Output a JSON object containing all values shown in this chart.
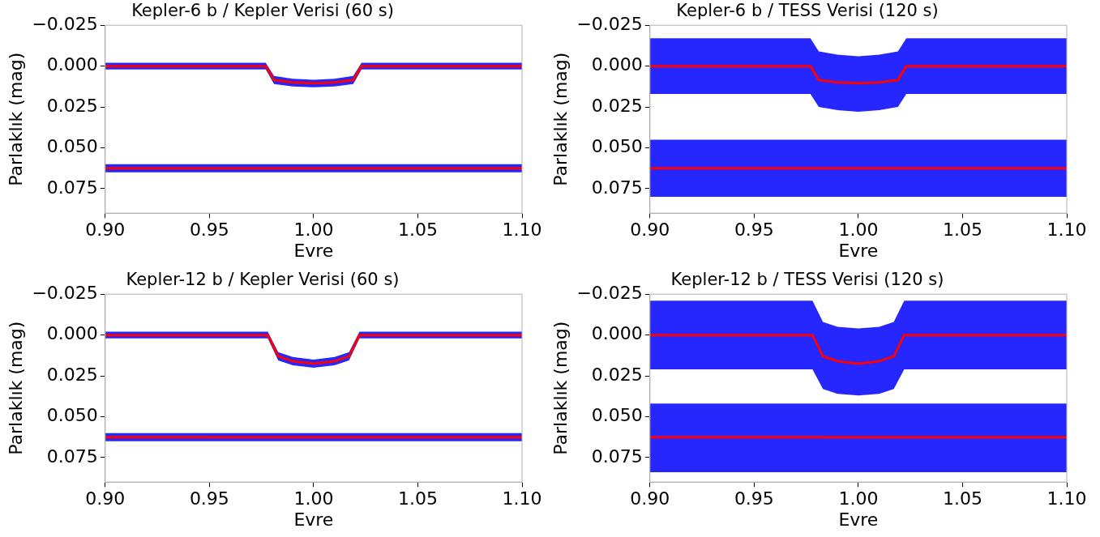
{
  "chart_data": [
    {
      "type": "line",
      "title": "Kepler-6 b / Kepler Verisi (60 s)",
      "xlabel": "Evre",
      "ylabel": "Parlaklık (mag)",
      "xlim": [
        0.9,
        1.1
      ],
      "ylim": [
        0.09,
        -0.025
      ],
      "grid": false,
      "legend": false,
      "xticks": [
        {
          "value": 0.9,
          "label": "0.90"
        },
        {
          "value": 0.95,
          "label": "0.95"
        },
        {
          "value": 1.0,
          "label": "1.00"
        },
        {
          "value": 1.05,
          "label": "1.05"
        },
        {
          "value": 1.1,
          "label": "1.10"
        }
      ],
      "yticks": [
        {
          "value": -0.025,
          "label": "−0.025"
        },
        {
          "value": 0,
          "label": "0.000"
        },
        {
          "value": 0.025,
          "label": "0.025"
        },
        {
          "value": 0.05,
          "label": "0.050"
        },
        {
          "value": 0.075,
          "label": "0.075"
        }
      ],
      "series": [
        {
          "color": "#0000ff",
          "x": [
            0.9,
            0.977,
            0.981,
            0.99,
            1.0,
            1.01,
            1.019,
            1.023,
            1.1
          ],
          "values": [
            null,
            null,
            null,
            null,
            null,
            null,
            null,
            null,
            null
          ],
          "lower": [
            -0.002,
            -0.002,
            0.006,
            0.0078,
            0.0083,
            0.0078,
            0.006,
            -0.002,
            -0.002
          ],
          "upper": [
            0.002,
            0.002,
            0.011,
            0.0125,
            0.013,
            0.0125,
            0.011,
            0.002,
            0.002
          ]
        },
        {
          "color": "#ff0000",
          "x": [
            0.9,
            0.977,
            0.981,
            0.99,
            1.0,
            1.01,
            1.019,
            1.023,
            1.1
          ],
          "values": [
            0,
            0,
            0.0085,
            0.01,
            0.0105,
            0.01,
            0.0085,
            0,
            0
          ]
        },
        {
          "color": "#0000ff",
          "x": [
            0.9,
            1.1
          ],
          "values": [
            null,
            null
          ],
          "lower": [
            0.06,
            0.06
          ],
          "upper": [
            0.065,
            0.065
          ]
        },
        {
          "color": "#ff0000",
          "x": [
            0.9,
            1.1
          ],
          "values": [
            0.0625,
            0.0625
          ]
        }
      ]
    },
    {
      "type": "line",
      "title": "Kepler-6 b / TESS Verisi (120 s)",
      "xlabel": "Evre",
      "ylabel": "Parlaklık (mag)",
      "xlim": [
        0.9,
        1.1
      ],
      "ylim": [
        0.09,
        -0.025
      ],
      "grid": false,
      "legend": false,
      "xticks": [
        {
          "value": 0.9,
          "label": "0.90"
        },
        {
          "value": 0.95,
          "label": "0.95"
        },
        {
          "value": 1.0,
          "label": "1.00"
        },
        {
          "value": 1.05,
          "label": "1.05"
        },
        {
          "value": 1.1,
          "label": "1.10"
        }
      ],
      "yticks": [
        {
          "value": -0.025,
          "label": "−0.025"
        },
        {
          "value": 0,
          "label": "0.000"
        },
        {
          "value": 0.025,
          "label": "0.025"
        },
        {
          "value": 0.05,
          "label": "0.050"
        },
        {
          "value": 0.075,
          "label": "0.075"
        }
      ],
      "series": [
        {
          "color": "#0000ff",
          "x": [
            0.9,
            0.977,
            0.981,
            0.99,
            1.0,
            1.01,
            1.019,
            1.023,
            1.1
          ],
          "values": [
            null,
            null,
            null,
            null,
            null,
            null,
            null,
            null,
            null
          ],
          "lower": [
            -0.017,
            -0.017,
            -0.009,
            -0.007,
            -0.006,
            -0.007,
            -0.009,
            -0.017,
            -0.017
          ],
          "upper": [
            0.017,
            0.017,
            0.025,
            0.027,
            0.028,
            0.027,
            0.025,
            0.017,
            0.017
          ]
        },
        {
          "color": "#ff0000",
          "x": [
            0.9,
            0.977,
            0.981,
            0.99,
            1.0,
            1.01,
            1.019,
            1.023,
            1.1
          ],
          "values": [
            0,
            0,
            0.0085,
            0.01,
            0.0105,
            0.01,
            0.0085,
            0,
            0
          ]
        },
        {
          "color": "#0000ff",
          "x": [
            0.9,
            1.1
          ],
          "values": [
            null,
            null
          ],
          "lower": [
            0.045,
            0.045
          ],
          "upper": [
            0.08,
            0.08
          ]
        },
        {
          "color": "#ff0000",
          "x": [
            0.9,
            1.1
          ],
          "values": [
            0.0625,
            0.0625
          ]
        }
      ]
    },
    {
      "type": "line",
      "title": "Kepler-12 b / Kepler Verisi (60 s)",
      "xlabel": "Evre",
      "ylabel": "Parlaklık (mag)",
      "xlim": [
        0.9,
        1.1
      ],
      "ylim": [
        0.09,
        -0.025
      ],
      "grid": false,
      "legend": false,
      "xticks": [
        {
          "value": 0.9,
          "label": "0.90"
        },
        {
          "value": 0.95,
          "label": "0.95"
        },
        {
          "value": 1.0,
          "label": "1.00"
        },
        {
          "value": 1.05,
          "label": "1.05"
        },
        {
          "value": 1.1,
          "label": "1.10"
        }
      ],
      "yticks": [
        {
          "value": -0.025,
          "label": "−0.025"
        },
        {
          "value": 0,
          "label": "0.000"
        },
        {
          "value": 0.025,
          "label": "0.025"
        },
        {
          "value": 0.05,
          "label": "0.050"
        },
        {
          "value": 0.075,
          "label": "0.075"
        }
      ],
      "series": [
        {
          "color": "#0000ff",
          "x": [
            0.9,
            0.978,
            0.983,
            0.99,
            1.0,
            1.01,
            1.017,
            1.022,
            1.1
          ],
          "values": [
            null,
            null,
            null,
            null,
            null,
            null,
            null,
            null,
            null
          ],
          "lower": [
            -0.002,
            -0.002,
            0.0105,
            0.0135,
            0.015,
            0.0135,
            0.0105,
            -0.002,
            -0.002
          ],
          "upper": [
            0.002,
            0.002,
            0.0155,
            0.0185,
            0.02,
            0.0185,
            0.0155,
            0.002,
            0.002
          ]
        },
        {
          "color": "#ff0000",
          "x": [
            0.9,
            0.978,
            0.983,
            0.99,
            1.0,
            1.01,
            1.017,
            1.022,
            1.1
          ],
          "values": [
            0,
            0,
            0.013,
            0.016,
            0.0175,
            0.016,
            0.013,
            0,
            0
          ]
        },
        {
          "color": "#0000ff",
          "x": [
            0.9,
            1.1
          ],
          "values": [
            null,
            null
          ],
          "lower": [
            0.06,
            0.06
          ],
          "upper": [
            0.065,
            0.065
          ]
        },
        {
          "color": "#ff0000",
          "x": [
            0.9,
            1.1
          ],
          "values": [
            0.0625,
            0.0625
          ]
        }
      ]
    },
    {
      "type": "line",
      "title": "Kepler-12 b / TESS Verisi (120 s)",
      "xlabel": "Evre",
      "ylabel": "Parlaklık (mag)",
      "xlim": [
        0.9,
        1.1
      ],
      "ylim": [
        0.09,
        -0.025
      ],
      "grid": false,
      "legend": false,
      "xticks": [
        {
          "value": 0.9,
          "label": "0.90"
        },
        {
          "value": 0.95,
          "label": "0.95"
        },
        {
          "value": 1.0,
          "label": "1.00"
        },
        {
          "value": 1.05,
          "label": "1.05"
        },
        {
          "value": 1.1,
          "label": "1.10"
        }
      ],
      "yticks": [
        {
          "value": -0.025,
          "label": "−0.025"
        },
        {
          "value": 0,
          "label": "0.000"
        },
        {
          "value": 0.025,
          "label": "0.025"
        },
        {
          "value": 0.05,
          "label": "0.050"
        },
        {
          "value": 0.075,
          "label": "0.075"
        }
      ],
      "series": [
        {
          "color": "#0000ff",
          "x": [
            0.9,
            0.978,
            0.983,
            0.99,
            1.0,
            1.01,
            1.017,
            1.022,
            1.1
          ],
          "values": [
            null,
            null,
            null,
            null,
            null,
            null,
            null,
            null,
            null
          ],
          "lower": [
            -0.021,
            -0.021,
            -0.008,
            -0.005,
            -0.004,
            -0.005,
            -0.008,
            -0.021,
            -0.021
          ],
          "upper": [
            0.021,
            0.021,
            0.033,
            0.036,
            0.037,
            0.036,
            0.033,
            0.021,
            0.021
          ]
        },
        {
          "color": "#ff0000",
          "x": [
            0.9,
            0.978,
            0.983,
            0.99,
            1.0,
            1.01,
            1.017,
            1.022,
            1.1
          ],
          "values": [
            0,
            0,
            0.013,
            0.016,
            0.0175,
            0.016,
            0.013,
            0,
            0
          ]
        },
        {
          "color": "#0000ff",
          "x": [
            0.9,
            1.1
          ],
          "values": [
            null,
            null
          ],
          "lower": [
            0.042,
            0.042
          ],
          "upper": [
            0.084,
            0.084
          ]
        },
        {
          "color": "#ff0000",
          "x": [
            0.9,
            1.1
          ],
          "values": [
            0.0625,
            0.0625
          ]
        }
      ]
    }
  ]
}
